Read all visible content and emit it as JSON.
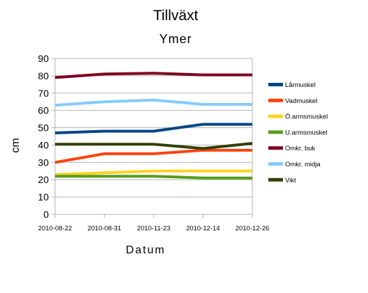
{
  "chart_data": {
    "type": "line",
    "title": "Tillväxt",
    "subtitle": "Ymer",
    "xlabel": "Datum",
    "ylabel": "cm",
    "categories": [
      "2010-08-22",
      "2010-08-31",
      "2010-11-23",
      "2010-12-14",
      "2010-12-26"
    ],
    "ylim": [
      0,
      90
    ],
    "yticks": [
      0,
      10,
      20,
      30,
      40,
      50,
      60,
      70,
      80,
      90
    ],
    "grid": true,
    "legend_position": "right",
    "series": [
      {
        "name": "Lårmuskel",
        "color": "#004586",
        "values": [
          47,
          48,
          48,
          52,
          52
        ]
      },
      {
        "name": "Vadmuskel",
        "color": "#ff420e",
        "values": [
          30,
          35,
          35,
          37,
          37
        ]
      },
      {
        "name": "Ö.armsmuskel",
        "color": "#ffd320",
        "values": [
          23,
          24,
          25,
          25,
          25
        ]
      },
      {
        "name": "U.armsmuskel",
        "color": "#579d1c",
        "values": [
          22,
          22,
          22,
          21,
          21
        ]
      },
      {
        "name": "Omkr. buk",
        "color": "#7e0021",
        "values": [
          79,
          81,
          81.5,
          80.5,
          80.5
        ]
      },
      {
        "name": "Omkr. midja",
        "color": "#83caff",
        "values": [
          63,
          65,
          66,
          63.5,
          63.5
        ]
      },
      {
        "name": "Vikt",
        "color": "#314004",
        "values": [
          40.5,
          40.5,
          40.5,
          38,
          41
        ]
      }
    ]
  }
}
